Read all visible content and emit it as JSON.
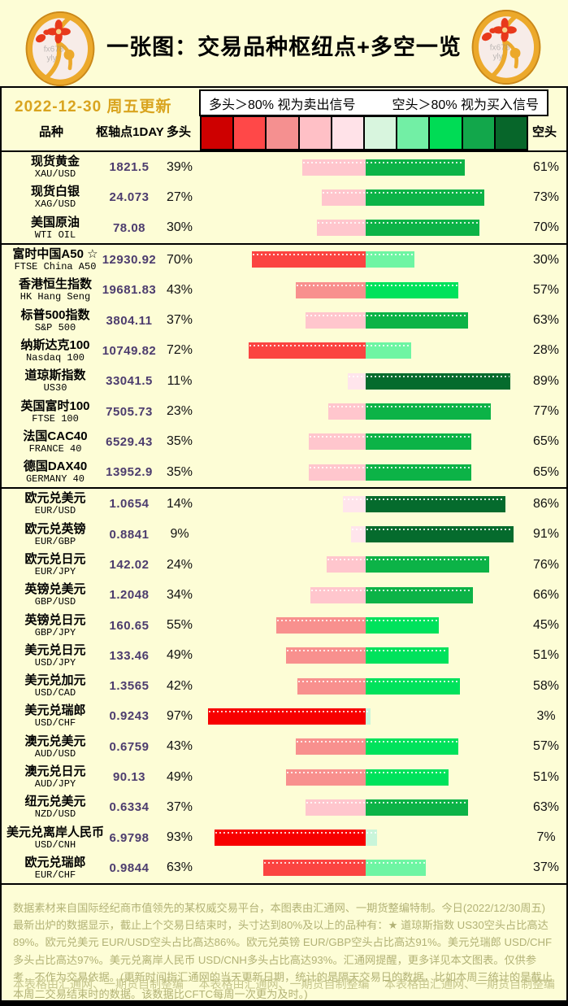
{
  "title": "一张图：交易品种枢纽点+多空一览",
  "date_note": "2022-12-30 周五更新",
  "legend": {
    "long_signal": "多头＞80% 视为卖出信号",
    "short_signal": "空头＞80% 视为买入信号"
  },
  "headers": {
    "instrument": "品种",
    "pivot": "枢轴点1DAY",
    "long": "多头",
    "short": "空头"
  },
  "scale_colors": [
    "#CE0000",
    "#FF4848",
    "#F59090",
    "#FFC0C6",
    "#FFE2E8",
    "#D8F5DE",
    "#72EFA5",
    "#00DC55",
    "#12A74B",
    "#07662A"
  ],
  "bar_colors": {
    "long": [
      "#FFE5EC",
      "#FFC6CD",
      "#F8908E",
      "#FB4441",
      "#F70000"
    ],
    "short": [
      "#C9F5DA",
      "#6EF5A3",
      "#00E25C",
      "#0CB347",
      "#056B2D"
    ]
  },
  "coin_watermark": {
    "line1": "fx678",
    "line2": "yly"
  },
  "chart_data": {
    "type": "bar",
    "orientation": "diverging-horizontal",
    "center": "bars diverge left (long/red) and right (short/green) from a shared center axis",
    "value_unit": "percent",
    "axis_range_each_side": [
      0,
      100
    ],
    "legend_position": "top",
    "groups": [
      {
        "rows": [
          {
            "name": "现货黄金",
            "code": "XAU/USD",
            "pivot": "1821.5",
            "long": 39,
            "short": 61
          },
          {
            "name": "现货白银",
            "code": "XAG/USD",
            "pivot": "24.073",
            "long": 27,
            "short": 73
          },
          {
            "name": "美国原油",
            "code": "WTI OIL",
            "pivot": "78.08",
            "long": 30,
            "short": 70
          }
        ]
      },
      {
        "rows": [
          {
            "name": "富时中国A50 ☆",
            "code": "FTSE China A50",
            "pivot": "12930.92",
            "long": 70,
            "short": 30
          },
          {
            "name": "香港恒生指数",
            "code": "HK Hang Seng",
            "pivot": "19681.83",
            "long": 43,
            "short": 57
          },
          {
            "name": "标普500指数",
            "code": "S&P 500",
            "pivot": "3804.11",
            "long": 37,
            "short": 63
          },
          {
            "name": "纳斯达克100",
            "code": "Nasdaq 100",
            "pivot": "10749.82",
            "long": 72,
            "short": 28
          },
          {
            "name": "道琼斯指数",
            "code": "US30",
            "pivot": "33041.5",
            "long": 11,
            "short": 89
          },
          {
            "name": "英国富时100",
            "code": "FTSE 100",
            "pivot": "7505.73",
            "long": 23,
            "short": 77
          },
          {
            "name": "法国CAC40",
            "code": "FRANCE 40",
            "pivot": "6529.43",
            "long": 35,
            "short": 65
          },
          {
            "name": "德国DAX40",
            "code": "GERMANY 40",
            "pivot": "13952.9",
            "long": 35,
            "short": 65
          }
        ]
      },
      {
        "rows": [
          {
            "name": "欧元兑美元",
            "code": "EUR/USD",
            "pivot": "1.0654",
            "long": 14,
            "short": 86
          },
          {
            "name": "欧元兑英镑",
            "code": "EUR/GBP",
            "pivot": "0.8841",
            "long": 9,
            "short": 91
          },
          {
            "name": "欧元兑日元",
            "code": "EUR/JPY",
            "pivot": "142.02",
            "long": 24,
            "short": 76
          },
          {
            "name": "英镑兑美元",
            "code": "GBP/USD",
            "pivot": "1.2048",
            "long": 34,
            "short": 66
          },
          {
            "name": "英镑兑日元",
            "code": "GBP/JPY",
            "pivot": "160.65",
            "long": 55,
            "short": 45
          },
          {
            "name": "美元兑日元",
            "code": "USD/JPY",
            "pivot": "133.46",
            "long": 49,
            "short": 51
          },
          {
            "name": "美元兑加元",
            "code": "USD/CAD",
            "pivot": "1.3565",
            "long": 42,
            "short": 58
          },
          {
            "name": "美元兑瑞郎",
            "code": "USD/CHF",
            "pivot": "0.9243",
            "long": 97,
            "short": 3
          },
          {
            "name": "澳元兑美元",
            "code": "AUD/USD",
            "pivot": "0.6759",
            "long": 43,
            "short": 57
          },
          {
            "name": "澳元兑日元",
            "code": "AUD/JPY",
            "pivot": "90.13",
            "long": 49,
            "short": 51
          },
          {
            "name": "纽元兑美元",
            "code": "NZD/USD",
            "pivot": "0.6334",
            "long": 37,
            "short": 63
          },
          {
            "name": "美元兑离岸人民币",
            "code": "USD/CNH",
            "pivot": "6.9798",
            "long": 93,
            "short": 7
          },
          {
            "name": "欧元兑瑞郎",
            "code": "EUR/CHF",
            "pivot": "0.9844",
            "long": 63,
            "short": 37
          }
        ]
      }
    ]
  },
  "footer": {
    "paragraph": "数据素材来自国际经纪商市值领先的某权威交易平台，本图表由汇通网、一期货整编特制。今日(2022/12/30周五)最新出炉的数据显示，截止上个交易日结束时，头寸达到80%及以上的品种有：★ 道琼斯指数 US30空头占比高达89%。欧元兑美元 EUR/USD空头占比高达86%。欧元兑英镑 EUR/GBP空头占比高达91%。美元兑瑞郎 USD/CHF多头占比高达97%。美元兑离岸人民币 USD/CNH多头占比高达93%。汇通网提醒，更多详见本文图表。仅供参考，不作为交易依据。(更新时间指汇通网的当天更新日期，统计的是隔天交易日的数据，比如本周三统计的是截止本周二交易结束时的数据。该数据比CFTC每周一次更为及时。)",
    "watermarks": [
      "本表格由汇通网、一期货自制整编",
      "本表格由汇通网、一期货自制整编",
      "本表格由汇通网、一期货自制整编"
    ]
  }
}
